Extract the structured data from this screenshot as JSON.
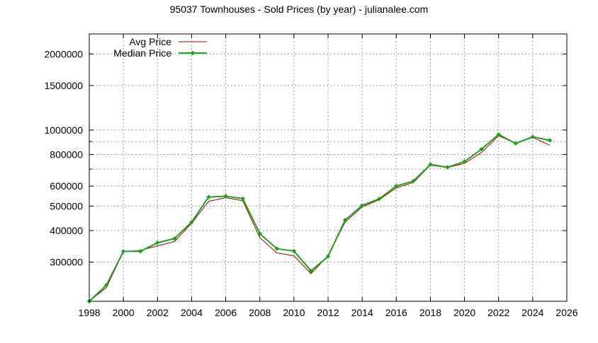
{
  "chart_data": {
    "type": "line",
    "title": "95037 Townhouses - Sold Prices (by year) - julianalee.com",
    "xlabel": "",
    "ylabel": "",
    "y_scale": "log",
    "grid": true,
    "legend_position": "top-left",
    "xlim": [
      1998,
      2026
    ],
    "ylim": [
      210000,
      2400000
    ],
    "x_ticks": [
      "1998",
      "2000",
      "2002",
      "2004",
      "2006",
      "2008",
      "2010",
      "2012",
      "2014",
      "2016",
      "2018",
      "2020",
      "2022",
      "2024",
      "2026"
    ],
    "y_ticks": [
      {
        "value": 300000,
        "label": "300000"
      },
      {
        "value": 400000,
        "label": "400000"
      },
      {
        "value": 500000,
        "label": "500000"
      },
      {
        "value": 600000,
        "label": "600000"
      },
      {
        "value": 800000,
        "label": "800000"
      },
      {
        "value": 1000000,
        "label": "1000000"
      },
      {
        "value": 1500000,
        "label": "1500000"
      },
      {
        "value": 2000000,
        "label": "2000000"
      }
    ],
    "y_minor_grid": [
      700000,
      900000
    ],
    "x": [
      1998,
      1999,
      2000,
      2001,
      2002,
      2003,
      2004,
      2005,
      2006,
      2007,
      2008,
      2009,
      2010,
      2011,
      2012,
      2013,
      2014,
      2015,
      2016,
      2017,
      2018,
      2019,
      2020,
      2021,
      2022,
      2023,
      2024,
      2025
    ],
    "series": [
      {
        "name": "Avg Price",
        "color": "#b40000",
        "marker": "none",
        "values": [
          210000,
          238000,
          330000,
          334000,
          348000,
          362000,
          428000,
          522000,
          540000,
          525000,
          375000,
          326000,
          318000,
          270000,
          318000,
          432000,
          496000,
          530000,
          590000,
          620000,
          726000,
          710000,
          738000,
          815000,
          950000,
          885000,
          935000,
          870000
        ]
      },
      {
        "name": "Median Price",
        "color": "#1aa31a",
        "marker": "diamond",
        "values": [
          210000,
          243000,
          331000,
          331000,
          358000,
          372000,
          432000,
          543000,
          547000,
          535000,
          389000,
          339000,
          332000,
          277000,
          316000,
          440000,
          503000,
          534000,
          600000,
          628000,
          730000,
          712000,
          750000,
          840000,
          960000,
          885000,
          940000,
          910000
        ]
      }
    ]
  }
}
